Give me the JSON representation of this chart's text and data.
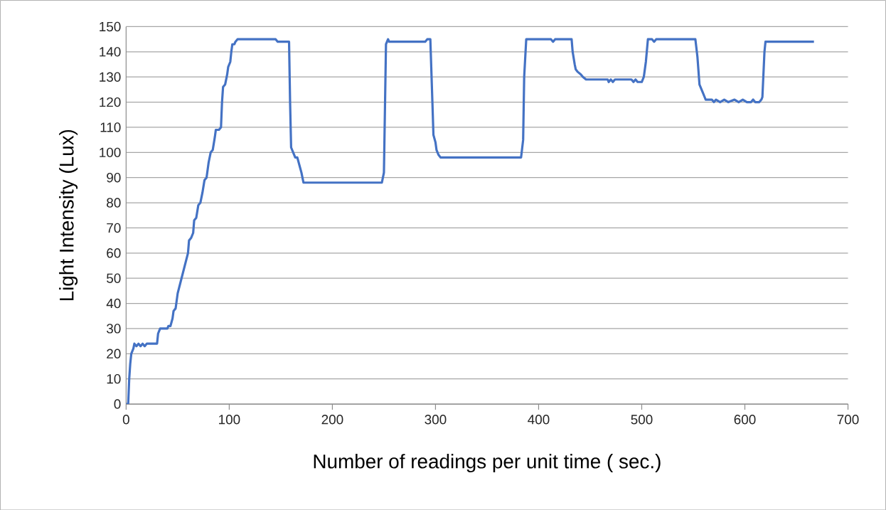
{
  "chart_data": {
    "type": "line",
    "xlabel": "Number of readings per unit time ( sec.)",
    "ylabel": "Light Intensity (Lux)",
    "xlim": [
      0,
      700
    ],
    "xticks": [
      0,
      100,
      200,
      300,
      400,
      500,
      600,
      700
    ],
    "ylim": [
      0,
      150
    ],
    "yticks": [
      0,
      10,
      20,
      30,
      40,
      50,
      60,
      70,
      80,
      90,
      100,
      110,
      120,
      130,
      140,
      150
    ],
    "grid": "y",
    "marker": "none",
    "line_style": "solid",
    "series": [
      {
        "color": "#4472c4",
        "x": [
          0,
          2,
          3,
          4,
          5,
          6,
          7,
          8,
          10,
          12,
          14,
          16,
          18,
          20,
          30,
          31,
          32,
          33,
          40,
          41,
          43,
          45,
          46,
          48,
          50,
          55,
          60,
          61,
          63,
          65,
          66,
          68,
          70,
          72,
          74,
          76,
          78,
          80,
          82,
          84,
          86,
          87,
          90,
          92,
          93,
          94,
          96,
          98,
          99,
          101,
          102,
          103,
          105,
          106,
          108,
          145,
          147,
          158,
          159,
          160,
          162,
          164,
          166,
          168,
          170,
          172,
          248,
          250,
          252,
          254,
          255,
          290,
          292,
          295,
          297,
          298,
          300,
          301,
          303,
          305,
          383,
          385,
          386,
          388,
          412,
          414,
          416,
          432,
          433,
          435,
          436,
          438,
          441,
          443,
          446,
          467,
          468,
          470,
          472,
          474,
          490,
          492,
          494,
          496,
          500,
          502,
          504,
          506,
          510,
          512,
          514,
          552,
          554,
          556,
          559,
          561,
          562,
          568,
          570,
          572,
          576,
          580,
          584,
          590,
          594,
          598,
          602,
          606,
          608,
          610,
          614,
          616,
          617,
          619,
          620,
          667
        ],
        "values": [
          0,
          0,
          10,
          16,
          20,
          21,
          22,
          24,
          23,
          24,
          23,
          24,
          23,
          24,
          24,
          28,
          29,
          30,
          30,
          31,
          31,
          34,
          37,
          38,
          44,
          52,
          60,
          65,
          66,
          68,
          73,
          74,
          79,
          80,
          84,
          89,
          90,
          96,
          100,
          101,
          106,
          109,
          109,
          110,
          120,
          126,
          127,
          131,
          134,
          136,
          140,
          143,
          143,
          144,
          145,
          145,
          144,
          144,
          120,
          102,
          100,
          98,
          98,
          95,
          92,
          88,
          88,
          92,
          143,
          145,
          144,
          144,
          145,
          145,
          120,
          107,
          104,
          101,
          99,
          98,
          98,
          105,
          130,
          145,
          145,
          144,
          145,
          145,
          140,
          135,
          133,
          132,
          131,
          130,
          129,
          129,
          128,
          129,
          128,
          129,
          129,
          128,
          129,
          128,
          128,
          130,
          136,
          145,
          145,
          144,
          145,
          145,
          138,
          127,
          124,
          122,
          121,
          121,
          120,
          121,
          120,
          121,
          120,
          121,
          120,
          121,
          120,
          120,
          121,
          120,
          120,
          121,
          122,
          140,
          144,
          144
        ]
      }
    ]
  }
}
